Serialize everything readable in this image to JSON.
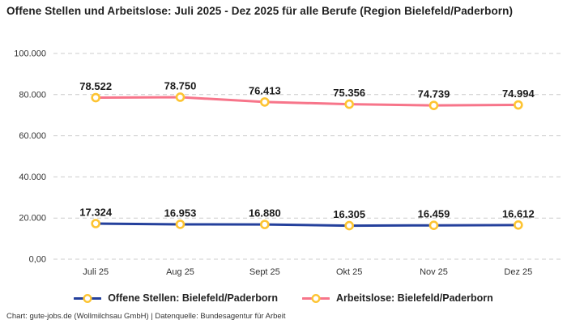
{
  "header": {
    "title": "Offene Stellen und Arbeitslose: Juli 2025 - Dez 2025 für alle Berufe (Region Bielefeld/Paderborn)"
  },
  "chart_data": {
    "type": "line",
    "title": "Offene Stellen und Arbeitslose: Juli 2025 - Dez 2025 für alle Berufe (Region Bielefeld/Paderborn)",
    "categories": [
      "Juli 25",
      "Aug 25",
      "Sept 25",
      "Okt 25",
      "Nov 25",
      "Dez 25"
    ],
    "series": [
      {
        "name": "Offene Stellen: Bielefeld/Paderborn",
        "color": "#24409c",
        "values": [
          17324,
          16953,
          16880,
          16305,
          16459,
          16612
        ],
        "point_labels": [
          "17.324",
          "16.953",
          "16.880",
          "16.305",
          "16.459",
          "16.612"
        ]
      },
      {
        "name": "Arbeitslose: Bielefeld/Paderborn",
        "color": "#f7758a",
        "values": [
          78522,
          78750,
          76413,
          75356,
          74739,
          74994
        ],
        "point_labels": [
          "78.522",
          "78.750",
          "76.413",
          "75.356",
          "74.739",
          "74.994"
        ]
      }
    ],
    "marker": {
      "stroke": "#fdc432",
      "fill": "#ffffff"
    },
    "ylim": [
      0,
      100000
    ],
    "ytick_step": 20000,
    "ytick_labels": [
      "0,00",
      "20.000",
      "40.000",
      "60.000",
      "80.000",
      "100.000"
    ],
    "grid": "dashed horizontal",
    "grid_color": "#cccccc",
    "legend_position": "bottom"
  },
  "legend": {
    "items": [
      {
        "label": "Offene Stellen: Bielefeld/Paderborn"
      },
      {
        "label": "Arbeitslose: Bielefeld/Paderborn"
      }
    ]
  },
  "footer": {
    "credit": "Chart: gute-jobs.de (Wollmilchsau GmbH) | Datenquelle: Bundesagentur für Arbeit"
  }
}
